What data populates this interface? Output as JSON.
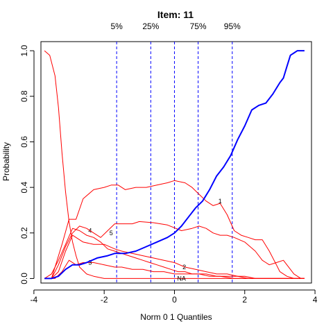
{
  "chart_data": {
    "type": "line",
    "title": "Item:  11",
    "xlabel": "Norm 0 1 Quantiles",
    "ylabel": "Probability",
    "xlim": [
      -3.8,
      3.9
    ],
    "ylim": [
      -0.02,
      1.04
    ],
    "xticks": [
      -4,
      -2,
      0,
      2,
      4
    ],
    "yticks": [
      0.0,
      0.2,
      0.4,
      0.6,
      0.8,
      1.0
    ],
    "grid": false,
    "quantile_lines": [
      {
        "label": "5%",
        "x": -1.645
      },
      {
        "label": "25%",
        "x": -0.674
      },
      {
        "label": "",
        "x": 0.0
      },
      {
        "label": "75%",
        "x": 0.674
      },
      {
        "label": "95%",
        "x": 1.645
      }
    ],
    "series": [
      {
        "label": "1",
        "label_at": [
          1.3,
          0.34
        ],
        "color": "#ff0000",
        "width": 1,
        "points": [
          [
            -3.7,
            0.0
          ],
          [
            -3.5,
            0.0
          ],
          [
            -3.4,
            0.05
          ],
          [
            -3.2,
            0.15
          ],
          [
            -3.0,
            0.26
          ],
          [
            -2.8,
            0.26
          ],
          [
            -2.6,
            0.35
          ],
          [
            -2.3,
            0.39
          ],
          [
            -2.0,
            0.4
          ],
          [
            -1.8,
            0.41
          ],
          [
            -1.6,
            0.41
          ],
          [
            -1.4,
            0.39
          ],
          [
            -1.1,
            0.4
          ],
          [
            -0.8,
            0.4
          ],
          [
            -0.5,
            0.41
          ],
          [
            -0.2,
            0.42
          ],
          [
            0.0,
            0.43
          ],
          [
            0.3,
            0.42
          ],
          [
            0.5,
            0.4
          ],
          [
            0.7,
            0.37
          ],
          [
            0.9,
            0.34
          ],
          [
            1.1,
            0.32
          ],
          [
            1.3,
            0.33
          ],
          [
            1.5,
            0.28
          ],
          [
            1.7,
            0.21
          ],
          [
            1.9,
            0.19
          ],
          [
            2.1,
            0.18
          ],
          [
            2.3,
            0.17
          ],
          [
            2.5,
            0.17
          ],
          [
            2.7,
            0.12
          ],
          [
            2.9,
            0.06
          ],
          [
            3.0,
            0.03
          ],
          [
            3.2,
            0.01
          ],
          [
            3.4,
            0.0
          ],
          [
            3.7,
            0.0
          ]
        ]
      },
      {
        "label": "2",
        "label_at": [
          0.28,
          0.05
        ],
        "color": "#ff0000",
        "width": 1,
        "points": [
          [
            -3.7,
            0.0
          ],
          [
            -3.5,
            0.0
          ],
          [
            -3.3,
            0.03
          ],
          [
            -3.1,
            0.12
          ],
          [
            -2.9,
            0.19
          ],
          [
            -2.6,
            0.16
          ],
          [
            -2.3,
            0.15
          ],
          [
            -2.0,
            0.15
          ],
          [
            -1.7,
            0.13
          ],
          [
            -1.5,
            0.12
          ],
          [
            -1.2,
            0.11
          ],
          [
            -0.9,
            0.1
          ],
          [
            -0.6,
            0.09
          ],
          [
            -0.3,
            0.08
          ],
          [
            0.0,
            0.07
          ],
          [
            0.3,
            0.05
          ],
          [
            0.6,
            0.04
          ],
          [
            0.9,
            0.03
          ],
          [
            1.2,
            0.02
          ],
          [
            1.5,
            0.02
          ],
          [
            1.8,
            0.01
          ],
          [
            2.0,
            0.01
          ],
          [
            2.3,
            0.0
          ],
          [
            3.7,
            0.0
          ]
        ]
      },
      {
        "label": "3",
        "label_at": [
          -2.4,
          0.07
        ],
        "color": "#ff0000",
        "width": 1,
        "points": [
          [
            -3.7,
            0.0
          ],
          [
            -3.4,
            0.0
          ],
          [
            -3.2,
            0.03
          ],
          [
            -3.0,
            0.08
          ],
          [
            -2.8,
            0.06
          ],
          [
            -2.6,
            0.07
          ],
          [
            -2.3,
            0.07
          ],
          [
            -2.0,
            0.06
          ],
          [
            -1.7,
            0.05
          ],
          [
            -1.5,
            0.05
          ],
          [
            -1.2,
            0.04
          ],
          [
            -0.9,
            0.04
          ],
          [
            -0.6,
            0.03
          ],
          [
            -0.3,
            0.03
          ],
          [
            0.0,
            0.02
          ],
          [
            0.3,
            0.02
          ],
          [
            0.6,
            0.02
          ],
          [
            0.9,
            0.02
          ],
          [
            1.2,
            0.01
          ],
          [
            1.5,
            0.01
          ],
          [
            1.8,
            0.01
          ],
          [
            2.1,
            0.0
          ],
          [
            3.7,
            0.0
          ]
        ]
      },
      {
        "label": "4",
        "label_at": [
          -2.4,
          0.21
        ],
        "color": "#ff0000",
        "width": 1,
        "points": [
          [
            -3.7,
            0.0
          ],
          [
            -3.5,
            0.02
          ],
          [
            -3.3,
            0.08
          ],
          [
            -3.1,
            0.15
          ],
          [
            -2.9,
            0.22
          ],
          [
            -2.7,
            0.21
          ],
          [
            -2.5,
            0.19
          ],
          [
            -2.3,
            0.18
          ],
          [
            -2.1,
            0.16
          ],
          [
            -1.9,
            0.13
          ],
          [
            -1.7,
            0.12
          ],
          [
            -1.5,
            0.11
          ],
          [
            -1.3,
            0.1
          ],
          [
            -1.1,
            0.09
          ],
          [
            -0.9,
            0.08
          ],
          [
            -0.7,
            0.07
          ],
          [
            -0.5,
            0.06
          ],
          [
            -0.3,
            0.05
          ],
          [
            -0.1,
            0.04
          ],
          [
            0.1,
            0.03
          ],
          [
            0.3,
            0.03
          ],
          [
            0.5,
            0.02
          ],
          [
            0.7,
            0.02
          ],
          [
            1.0,
            0.01
          ],
          [
            1.3,
            0.01
          ],
          [
            1.7,
            0.0
          ],
          [
            3.7,
            0.0
          ]
        ]
      },
      {
        "label": "5",
        "label_at": [
          -1.8,
          0.2
        ],
        "color": "#ff0000",
        "width": 1,
        "points": [
          [
            -3.7,
            0.0
          ],
          [
            -3.5,
            0.0
          ],
          [
            -3.3,
            0.06
          ],
          [
            -3.1,
            0.14
          ],
          [
            -2.9,
            0.2
          ],
          [
            -2.7,
            0.23
          ],
          [
            -2.5,
            0.22
          ],
          [
            -2.3,
            0.2
          ],
          [
            -2.1,
            0.18
          ],
          [
            -1.9,
            0.21
          ],
          [
            -1.7,
            0.24
          ],
          [
            -1.5,
            0.24
          ],
          [
            -1.2,
            0.24
          ],
          [
            -1.0,
            0.25
          ],
          [
            -0.6,
            0.245
          ],
          [
            -0.2,
            0.235
          ],
          [
            0.2,
            0.21
          ],
          [
            0.5,
            0.22
          ],
          [
            0.7,
            0.23
          ],
          [
            0.9,
            0.22
          ],
          [
            1.1,
            0.2
          ],
          [
            1.3,
            0.19
          ],
          [
            1.5,
            0.19
          ],
          [
            1.7,
            0.18
          ],
          [
            2.0,
            0.16
          ],
          [
            2.3,
            0.12
          ],
          [
            2.5,
            0.08
          ],
          [
            2.7,
            0.06
          ],
          [
            2.9,
            0.07
          ],
          [
            3.1,
            0.08
          ],
          [
            3.2,
            0.06
          ],
          [
            3.4,
            0.02
          ],
          [
            3.6,
            0.0
          ],
          [
            3.7,
            0.0
          ]
        ]
      },
      {
        "label": "NA",
        "label_at": [
          0.2,
          0.0
        ],
        "color": "#ff0000",
        "width": 1,
        "points": [
          [
            -3.7,
            1.0
          ],
          [
            -3.55,
            0.98
          ],
          [
            -3.4,
            0.89
          ],
          [
            -3.3,
            0.75
          ],
          [
            -3.2,
            0.55
          ],
          [
            -3.1,
            0.38
          ],
          [
            -3.0,
            0.25
          ],
          [
            -2.9,
            0.16
          ],
          [
            -2.8,
            0.1
          ],
          [
            -2.7,
            0.05
          ],
          [
            -2.5,
            0.02
          ],
          [
            -2.3,
            0.01
          ],
          [
            -2.0,
            0.0
          ],
          [
            3.7,
            0.0
          ]
        ]
      },
      {
        "label": "",
        "color": "#0000ff",
        "width": 2,
        "points": [
          [
            -3.7,
            0.0
          ],
          [
            -3.5,
            0.0
          ],
          [
            -3.3,
            0.01
          ],
          [
            -3.1,
            0.04
          ],
          [
            -2.9,
            0.06
          ],
          [
            -2.7,
            0.06
          ],
          [
            -2.5,
            0.07
          ],
          [
            -2.2,
            0.09
          ],
          [
            -1.9,
            0.1
          ],
          [
            -1.7,
            0.11
          ],
          [
            -1.4,
            0.11
          ],
          [
            -1.1,
            0.12
          ],
          [
            -0.8,
            0.14
          ],
          [
            -0.5,
            0.16
          ],
          [
            -0.2,
            0.18
          ],
          [
            0.0,
            0.2
          ],
          [
            0.2,
            0.23
          ],
          [
            0.4,
            0.27
          ],
          [
            0.6,
            0.31
          ],
          [
            0.8,
            0.34
          ],
          [
            1.0,
            0.39
          ],
          [
            1.2,
            0.45
          ],
          [
            1.4,
            0.49
          ],
          [
            1.6,
            0.54
          ],
          [
            1.8,
            0.61
          ],
          [
            2.0,
            0.67
          ],
          [
            2.2,
            0.74
          ],
          [
            2.4,
            0.76
          ],
          [
            2.6,
            0.77
          ],
          [
            2.8,
            0.81
          ],
          [
            3.0,
            0.86
          ],
          [
            3.1,
            0.88
          ],
          [
            3.2,
            0.93
          ],
          [
            3.3,
            0.98
          ],
          [
            3.4,
            0.99
          ],
          [
            3.5,
            1.0
          ],
          [
            3.7,
            1.0
          ]
        ]
      }
    ]
  }
}
